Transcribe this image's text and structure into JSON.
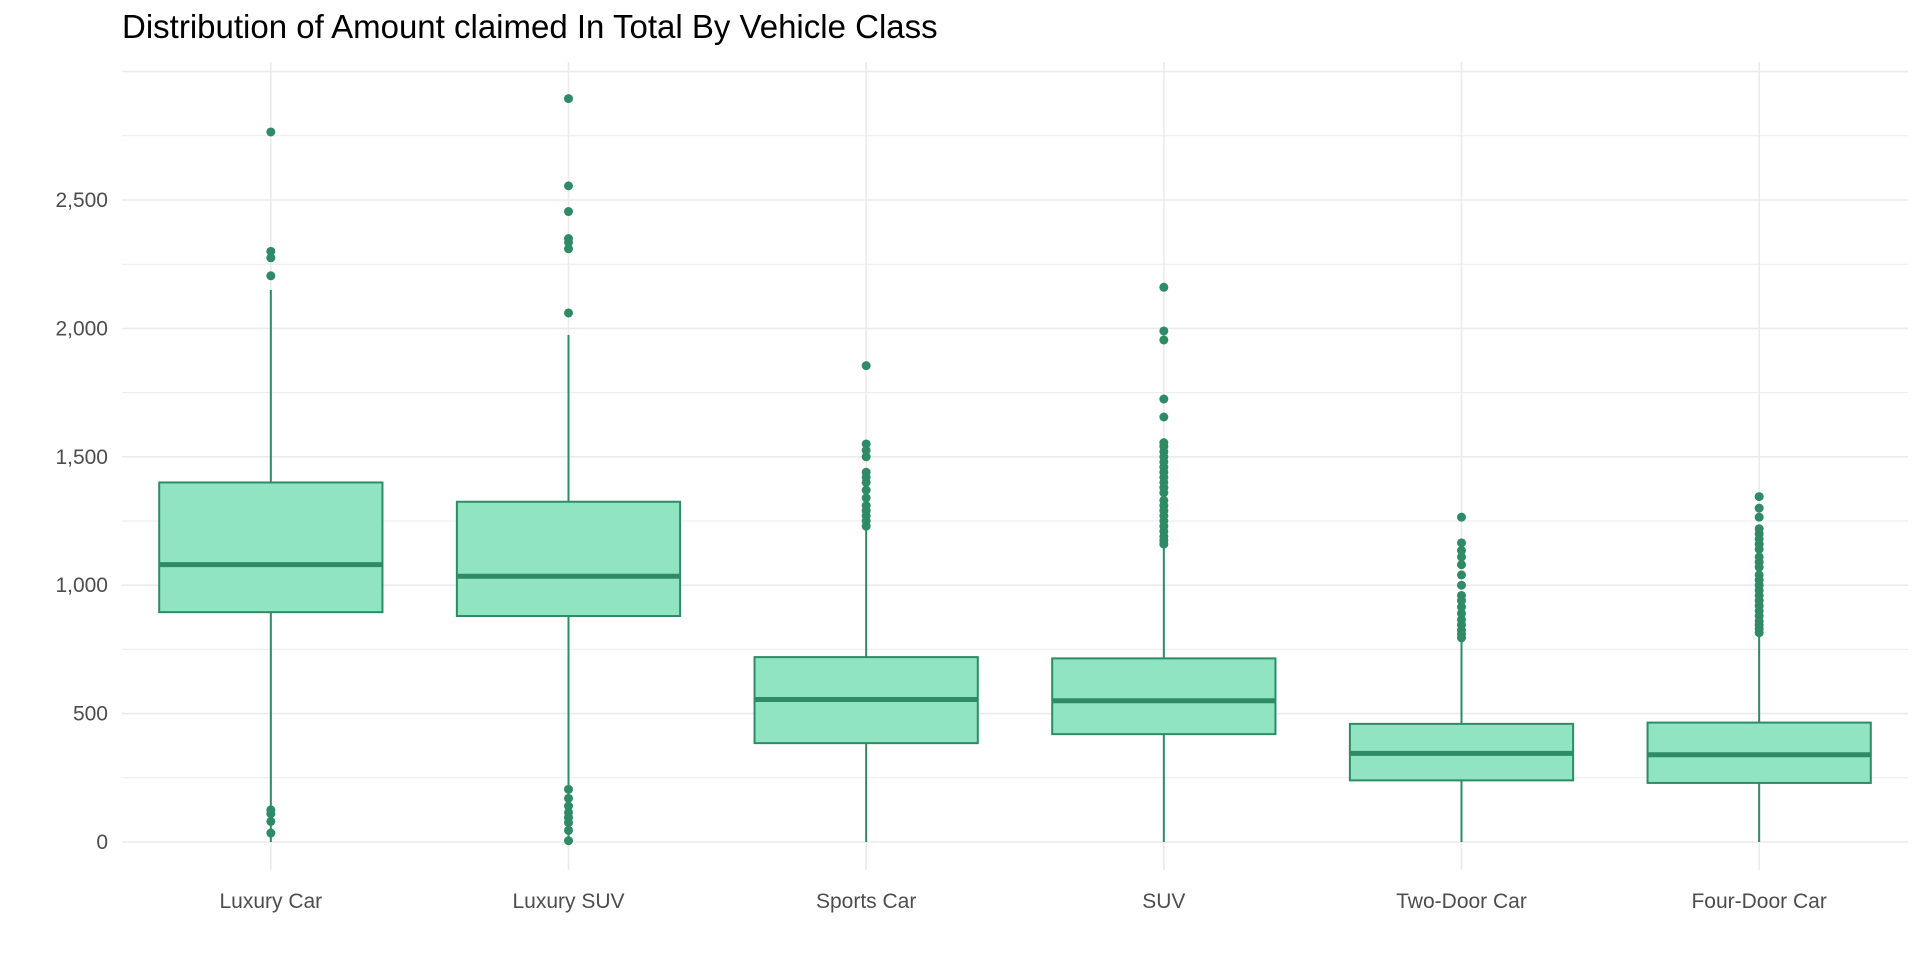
{
  "chart_data": {
    "type": "boxplot",
    "title": "Distribution of Amount claimed In Total By Vehicle Class",
    "xlabel": "",
    "ylabel": "",
    "ylim": [
      -130,
      3030
    ],
    "y_ticks": [
      0,
      500,
      1000,
      1500,
      2000,
      2500
    ],
    "y_tick_labels": [
      "0",
      "500",
      "1,000",
      "1,500",
      "2,000",
      "2,500"
    ],
    "grid": true,
    "legend": "none",
    "colors": {
      "fill": "#91e4c2",
      "stroke": "#2e8b66",
      "grid": "#ebebeb",
      "tick_text": "#4d4d4d"
    },
    "categories": [
      "Luxury Car",
      "Luxury SUV",
      "Sports Car",
      "SUV",
      "Two-Door Car",
      "Four-Door Car"
    ],
    "boxes": [
      {
        "category": "Luxury Car",
        "whisker_low": 0,
        "q1": 895,
        "median": 1080,
        "q3": 1400,
        "whisker_high": 2150,
        "outliers": [
          35,
          80,
          110,
          125,
          2205,
          2275,
          2300,
          2765
        ]
      },
      {
        "category": "Luxury SUV",
        "whisker_low": 0,
        "q1": 880,
        "median": 1035,
        "q3": 1325,
        "whisker_high": 1975,
        "outliers": [
          5,
          45,
          75,
          95,
          115,
          140,
          170,
          205,
          2060,
          2310,
          2335,
          2350,
          2455,
          2555,
          2895
        ]
      },
      {
        "category": "Sports Car",
        "whisker_low": 0,
        "q1": 385,
        "median": 555,
        "q3": 720,
        "whisker_high": 1215,
        "outliers": [
          1230,
          1250,
          1270,
          1290,
          1310,
          1340,
          1370,
          1400,
          1420,
          1440,
          1500,
          1525,
          1550,
          1855
        ]
      },
      {
        "category": "SUV",
        "whisker_low": 0,
        "q1": 420,
        "median": 550,
        "q3": 715,
        "whisker_high": 1150,
        "outliers": [
          1160,
          1175,
          1190,
          1210,
          1230,
          1250,
          1270,
          1290,
          1310,
          1330,
          1360,
          1380,
          1400,
          1420,
          1440,
          1460,
          1480,
          1500,
          1520,
          1540,
          1555,
          1655,
          1725,
          1955,
          1990,
          2160
        ]
      },
      {
        "category": "Two-Door Car",
        "whisker_low": 0,
        "q1": 240,
        "median": 345,
        "q3": 460,
        "whisker_high": 780,
        "outliers": [
          795,
          810,
          825,
          845,
          865,
          890,
          915,
          940,
          960,
          1000,
          1040,
          1080,
          1110,
          1135,
          1165,
          1265
        ]
      },
      {
        "category": "Four-Door Car",
        "whisker_low": 0,
        "q1": 230,
        "median": 340,
        "q3": 465,
        "whisker_high": 800,
        "outliers": [
          815,
          830,
          845,
          860,
          880,
          900,
          920,
          940,
          960,
          980,
          1000,
          1020,
          1040,
          1070,
          1090,
          1110,
          1140,
          1160,
          1180,
          1200,
          1220,
          1265,
          1300,
          1345
        ]
      }
    ]
  }
}
